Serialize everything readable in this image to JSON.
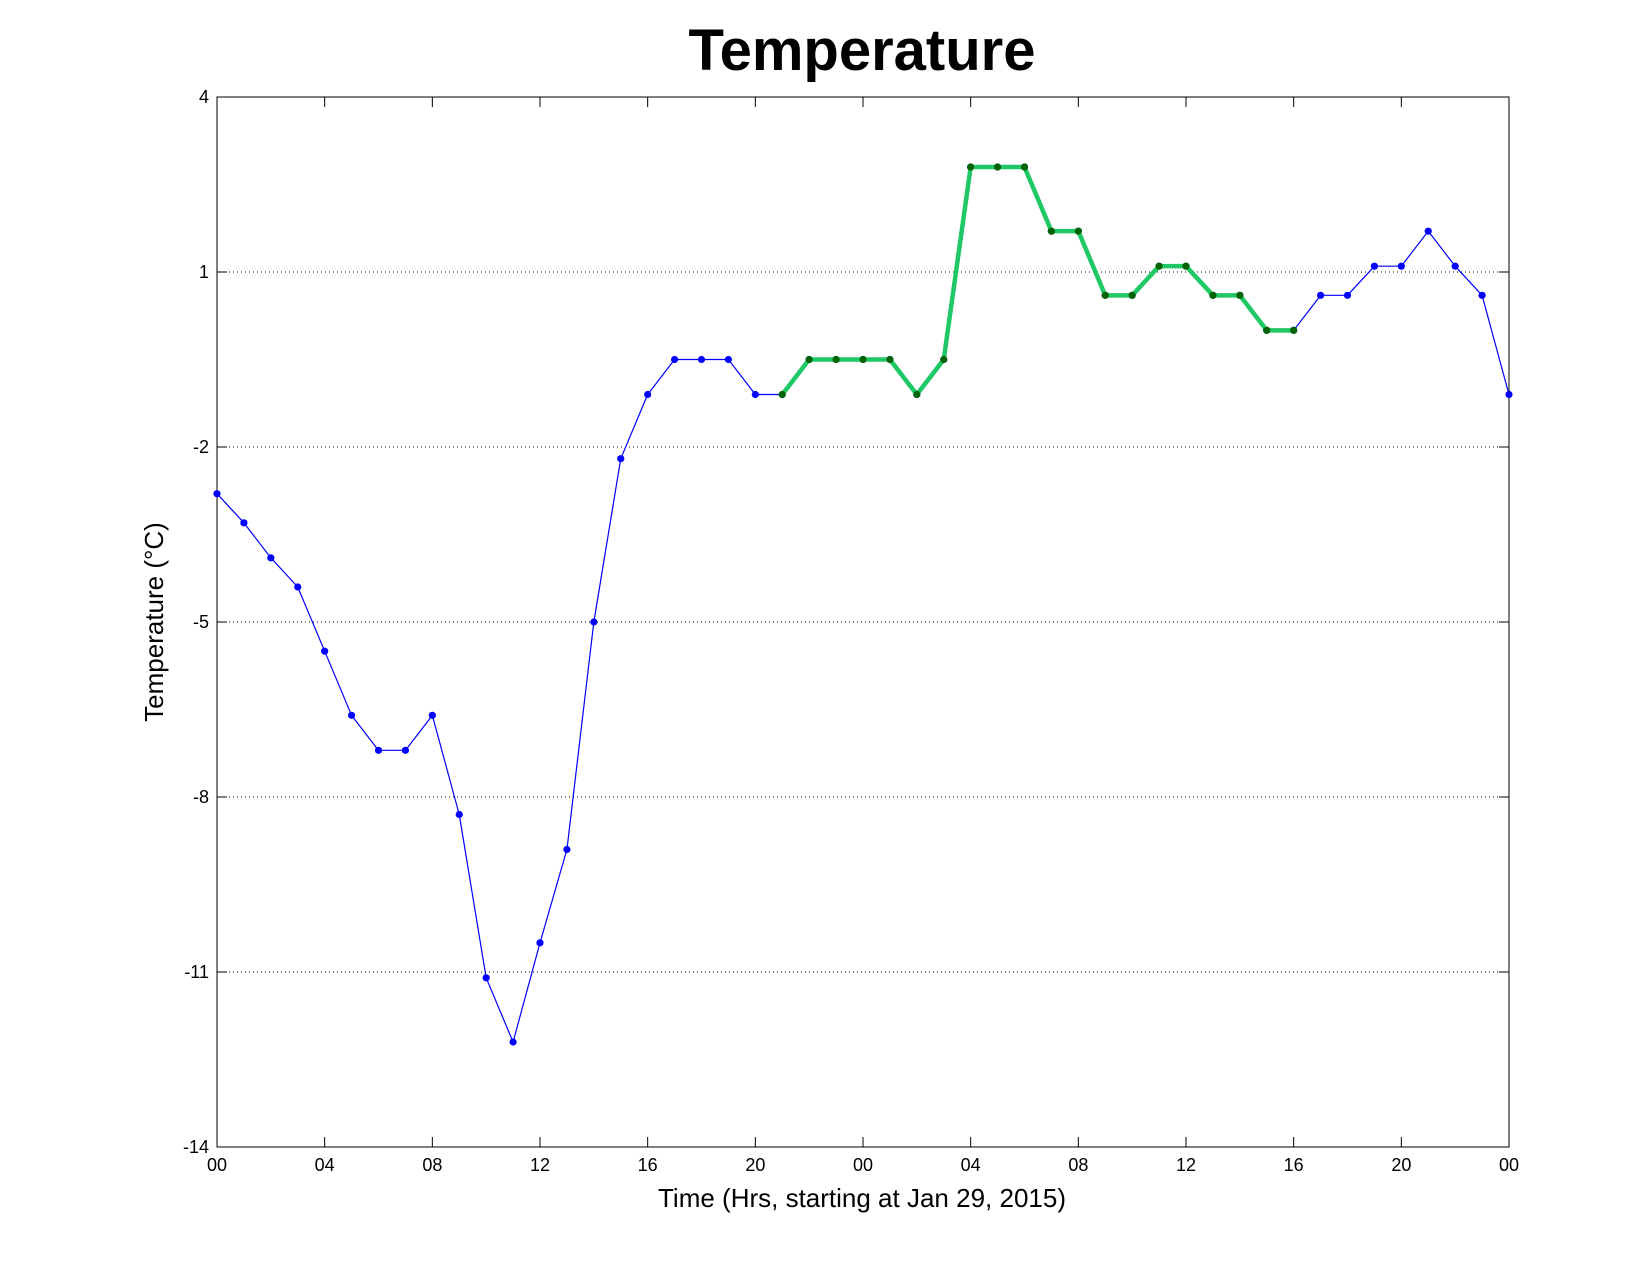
{
  "chart_data": {
    "type": "line",
    "title": "Temperature",
    "xlabel": "Time (Hrs, starting at Jan 29, 2015)",
    "ylabel": "Temperature (°C)",
    "ylim": [
      -14,
      4
    ],
    "yticks": [
      -14,
      -11,
      -8,
      -5,
      -2,
      1,
      4
    ],
    "xlim": [
      0,
      48
    ],
    "xticks": [
      0,
      4,
      8,
      12,
      16,
      20,
      24,
      28,
      32,
      36,
      40,
      44,
      48
    ],
    "xtick_labels": [
      "00",
      "04",
      "08",
      "12",
      "16",
      "20",
      "00",
      "04",
      "08",
      "12",
      "16",
      "20",
      "00"
    ],
    "grid": "horizontal dotted",
    "colors": {
      "main": "#0000ff",
      "highlight": "#1ec864",
      "highlight_marker": "#006400"
    },
    "series": [
      {
        "x": [
          0,
          1,
          2,
          3,
          4,
          5,
          6,
          7,
          8,
          9,
          10,
          11,
          12,
          13,
          14,
          15,
          16,
          17,
          18,
          19,
          20,
          21,
          22,
          23,
          24,
          25,
          26,
          27,
          28,
          29,
          30,
          31,
          32,
          33,
          34,
          35,
          36,
          37,
          38,
          39,
          40,
          41,
          42,
          43,
          44,
          45,
          46,
          47,
          48
        ],
        "values": [
          -2.8,
          -3.3,
          -3.9,
          -4.4,
          -5.5,
          -6.6,
          -7.2,
          -7.2,
          -6.6,
          -8.3,
          -11.1,
          -12.2,
          -10.5,
          -8.9,
          -5.0,
          -2.2,
          -1.1,
          -0.5,
          -0.5,
          -0.5,
          -1.1,
          -1.1,
          -0.5,
          -0.5,
          -0.5,
          -0.5,
          -1.1,
          -0.5,
          2.8,
          2.8,
          2.8,
          1.7,
          1.7,
          0.6,
          0.6,
          1.1,
          1.1,
          0.6,
          0.6,
          0.0,
          0.0,
          0.6,
          0.6,
          1.1,
          1.1,
          1.7,
          1.1,
          0.6,
          -1.1
        ]
      },
      {
        "x": [
          21,
          22,
          23,
          24,
          25,
          26,
          27,
          28,
          29,
          30,
          31,
          32,
          33,
          34,
          35,
          36,
          37,
          38,
          39,
          40
        ],
        "values": [
          -1.1,
          -0.5,
          -0.5,
          -0.5,
          -0.5,
          -1.1,
          -0.5,
          2.8,
          2.8,
          2.8,
          1.7,
          1.7,
          0.6,
          0.6,
          1.1,
          1.1,
          0.6,
          0.6,
          0.0,
          0.0
        ]
      }
    ]
  }
}
